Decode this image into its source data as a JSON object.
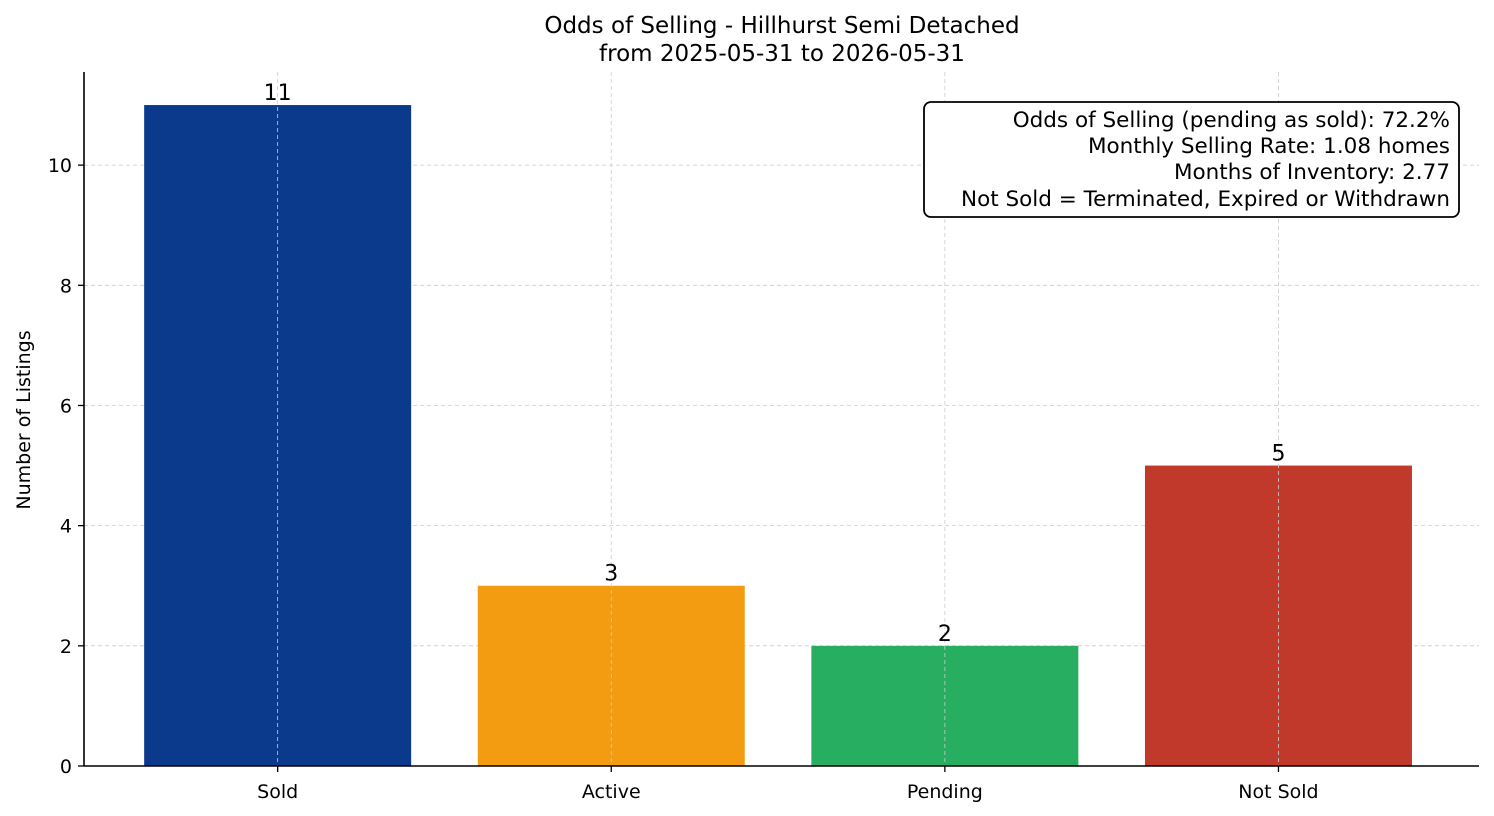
{
  "chart_data": {
    "type": "bar",
    "title": "Odds of Selling - Hillhurst Semi Detached",
    "subtitle": "from 2025-05-31 to 2026-05-31",
    "xlabel": "",
    "ylabel": "Number of Listings",
    "categories": [
      "Sold",
      "Active",
      "Pending",
      "Not Sold"
    ],
    "values": [
      11,
      3,
      2,
      5
    ],
    "colors": [
      "#0b3a8c",
      "#f39c12",
      "#27ae60",
      "#c0392b"
    ],
    "ylim": [
      0,
      11.55
    ],
    "yticks": [
      0,
      2,
      4,
      6,
      8,
      10
    ],
    "grid": true,
    "annotation": {
      "placement": "top-right",
      "lines": [
        "Odds of Selling (pending as sold): 72.2%",
        "Monthly Selling Rate: 1.08 homes",
        "Months of Inventory: 2.77",
        "Not Sold = Terminated, Expired or Withdrawn"
      ]
    }
  }
}
